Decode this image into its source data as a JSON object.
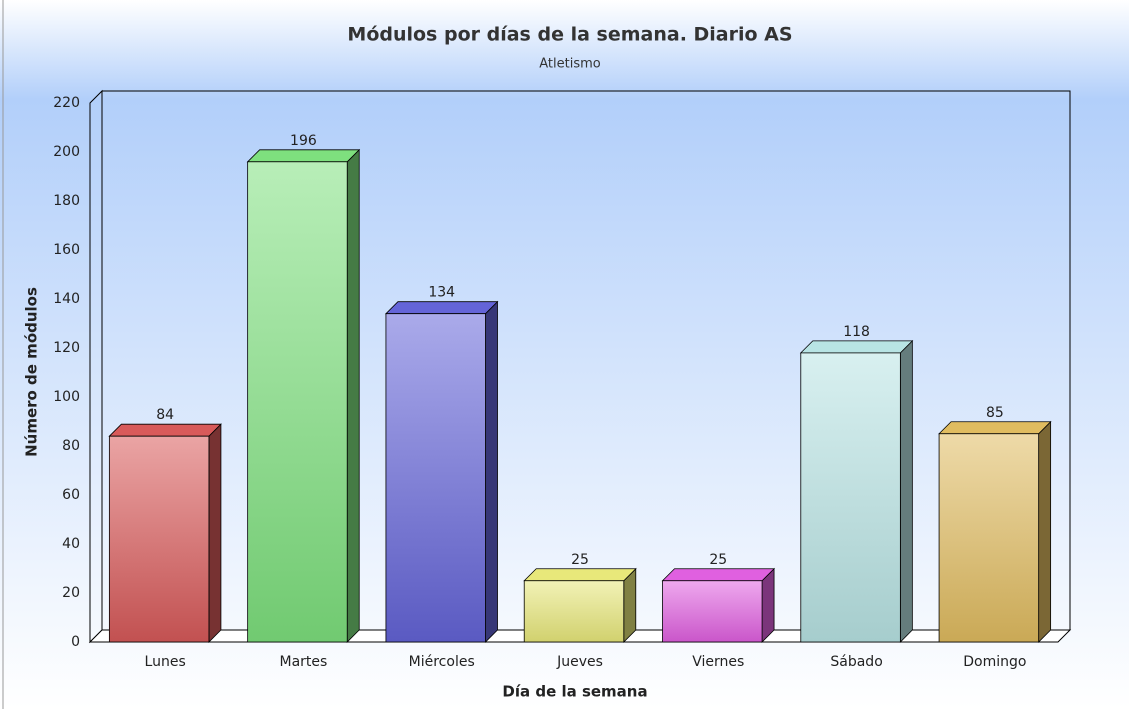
{
  "chart_data": {
    "type": "bar3d",
    "title": "Módulos por días de la semana. Diario AS",
    "subtitle": "Atletismo",
    "x_label": "Día de la semana",
    "y_label": "Número de módulos",
    "categories": [
      "Lunes",
      "Martes",
      "Miércoles",
      "Jueves",
      "Viernes",
      "Sábado",
      "Domingo"
    ],
    "values": [
      84,
      196,
      134,
      25,
      25,
      118,
      85
    ],
    "colors": [
      "#d85a5a",
      "#7ee07e",
      "#6464d8",
      "#e8e87a",
      "#e060e0",
      "#b8e4e4",
      "#e0bc60"
    ],
    "ylim": [
      0,
      220
    ],
    "yticks": [
      0,
      20,
      40,
      60,
      80,
      100,
      120,
      140,
      160,
      180,
      200,
      220
    ],
    "grid": false
  }
}
